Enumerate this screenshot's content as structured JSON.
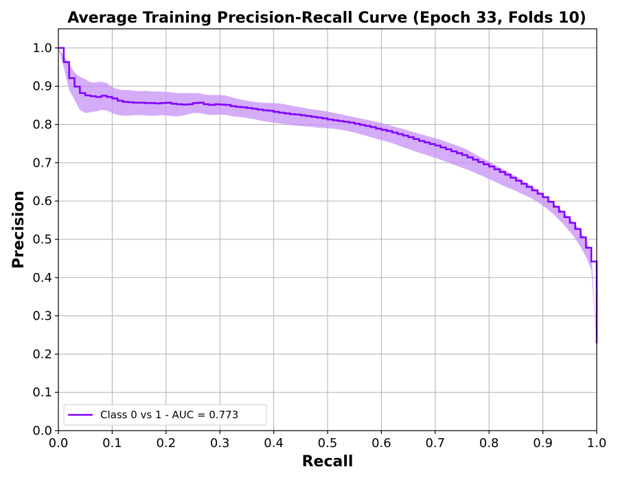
{
  "chart_data": {
    "type": "line",
    "title": "Average Training Precision-Recall Curve (Epoch 33, Folds 10)",
    "xlabel": "Recall",
    "ylabel": "Precision",
    "xlim": [
      0.0,
      1.0
    ],
    "ylim": [
      0.0,
      1.05
    ],
    "xticks": [
      "0.0",
      "0.1",
      "0.2",
      "0.3",
      "0.4",
      "0.5",
      "0.6",
      "0.7",
      "0.8",
      "0.9",
      "1.0"
    ],
    "yticks": [
      "0.0",
      "0.1",
      "0.2",
      "0.3",
      "0.4",
      "0.5",
      "0.6",
      "0.7",
      "0.8",
      "0.9",
      "1.0"
    ],
    "grid": true,
    "legend_position": "lower-left",
    "series": [
      {
        "name": "Class 0 vs 1  -  AUC = 0.773",
        "color": "#7f00ff",
        "band_color": "#c590f5",
        "step": true,
        "x": [
          0.0,
          0.01,
          0.02,
          0.03,
          0.04,
          0.05,
          0.06,
          0.07,
          0.08,
          0.09,
          0.1,
          0.11,
          0.12,
          0.13,
          0.14,
          0.15,
          0.16,
          0.17,
          0.18,
          0.19,
          0.2,
          0.21,
          0.22,
          0.23,
          0.24,
          0.25,
          0.26,
          0.27,
          0.28,
          0.29,
          0.3,
          0.31,
          0.32,
          0.33,
          0.34,
          0.35,
          0.36,
          0.37,
          0.38,
          0.39,
          0.4,
          0.41,
          0.42,
          0.43,
          0.44,
          0.45,
          0.46,
          0.47,
          0.48,
          0.49,
          0.5,
          0.51,
          0.52,
          0.53,
          0.54,
          0.55,
          0.56,
          0.57,
          0.58,
          0.59,
          0.6,
          0.61,
          0.62,
          0.63,
          0.64,
          0.65,
          0.66,
          0.67,
          0.68,
          0.69,
          0.7,
          0.71,
          0.72,
          0.73,
          0.74,
          0.75,
          0.76,
          0.77,
          0.78,
          0.79,
          0.8,
          0.81,
          0.82,
          0.83,
          0.84,
          0.85,
          0.86,
          0.87,
          0.88,
          0.89,
          0.9,
          0.91,
          0.92,
          0.93,
          0.94,
          0.95,
          0.96,
          0.97,
          0.98,
          0.99,
          1.0
        ],
        "y": [
          1.0,
          0.963,
          0.921,
          0.899,
          0.882,
          0.876,
          0.874,
          0.872,
          0.875,
          0.872,
          0.868,
          0.862,
          0.859,
          0.858,
          0.857,
          0.857,
          0.856,
          0.856,
          0.855,
          0.856,
          0.857,
          0.854,
          0.853,
          0.852,
          0.853,
          0.856,
          0.857,
          0.853,
          0.851,
          0.853,
          0.852,
          0.851,
          0.848,
          0.846,
          0.845,
          0.843,
          0.841,
          0.839,
          0.837,
          0.836,
          0.833,
          0.831,
          0.829,
          0.827,
          0.826,
          0.824,
          0.822,
          0.82,
          0.818,
          0.816,
          0.813,
          0.811,
          0.809,
          0.807,
          0.805,
          0.802,
          0.799,
          0.796,
          0.793,
          0.789,
          0.786,
          0.783,
          0.779,
          0.775,
          0.771,
          0.767,
          0.762,
          0.757,
          0.753,
          0.749,
          0.745,
          0.74,
          0.735,
          0.73,
          0.725,
          0.72,
          0.714,
          0.708,
          0.702,
          0.696,
          0.69,
          0.683,
          0.676,
          0.669,
          0.661,
          0.653,
          0.645,
          0.637,
          0.628,
          0.619,
          0.61,
          0.598,
          0.585,
          0.572,
          0.558,
          0.543,
          0.527,
          0.505,
          0.478,
          0.442,
          0.228
        ],
        "y_lower": [
          1.0,
          0.95,
          0.89,
          0.865,
          0.838,
          0.83,
          0.832,
          0.834,
          0.838,
          0.836,
          0.83,
          0.825,
          0.823,
          0.823,
          0.824,
          0.825,
          0.824,
          0.823,
          0.823,
          0.824,
          0.824,
          0.822,
          0.821,
          0.823,
          0.826,
          0.83,
          0.83,
          0.828,
          0.825,
          0.825,
          0.826,
          0.825,
          0.823,
          0.82,
          0.819,
          0.817,
          0.815,
          0.812,
          0.809,
          0.807,
          0.805,
          0.803,
          0.801,
          0.799,
          0.797,
          0.796,
          0.795,
          0.794,
          0.792,
          0.791,
          0.79,
          0.789,
          0.787,
          0.785,
          0.782,
          0.779,
          0.775,
          0.771,
          0.767,
          0.763,
          0.759,
          0.755,
          0.751,
          0.746,
          0.741,
          0.736,
          0.731,
          0.726,
          0.722,
          0.717,
          0.713,
          0.708,
          0.703,
          0.697,
          0.692,
          0.687,
          0.682,
          0.676,
          0.67,
          0.664,
          0.657,
          0.651,
          0.644,
          0.638,
          0.632,
          0.626,
          0.619,
          0.613,
          0.606,
          0.598,
          0.588,
          0.577,
          0.565,
          0.551,
          0.536,
          0.52,
          0.502,
          0.48,
          0.455,
          0.42,
          0.228
        ],
        "y_upper": [
          1.0,
          0.98,
          0.958,
          0.936,
          0.925,
          0.918,
          0.91,
          0.91,
          0.912,
          0.908,
          0.898,
          0.892,
          0.89,
          0.89,
          0.888,
          0.887,
          0.888,
          0.887,
          0.886,
          0.886,
          0.885,
          0.884,
          0.882,
          0.882,
          0.882,
          0.882,
          0.882,
          0.879,
          0.877,
          0.877,
          0.877,
          0.876,
          0.872,
          0.868,
          0.865,
          0.862,
          0.86,
          0.858,
          0.857,
          0.856,
          0.856,
          0.855,
          0.853,
          0.85,
          0.847,
          0.845,
          0.842,
          0.84,
          0.838,
          0.836,
          0.834,
          0.831,
          0.828,
          0.825,
          0.822,
          0.819,
          0.816,
          0.813,
          0.81,
          0.807,
          0.804,
          0.8,
          0.796,
          0.792,
          0.788,
          0.784,
          0.78,
          0.776,
          0.772,
          0.768,
          0.764,
          0.76,
          0.755,
          0.75,
          0.745,
          0.74,
          0.733,
          0.725,
          0.718,
          0.71,
          0.703,
          0.695,
          0.688,
          0.68,
          0.672,
          0.664,
          0.656,
          0.647,
          0.638,
          0.628,
          0.617,
          0.606,
          0.594,
          0.582,
          0.569,
          0.555,
          0.54,
          0.522,
          0.498,
          0.465,
          0.228
        ]
      }
    ]
  }
}
